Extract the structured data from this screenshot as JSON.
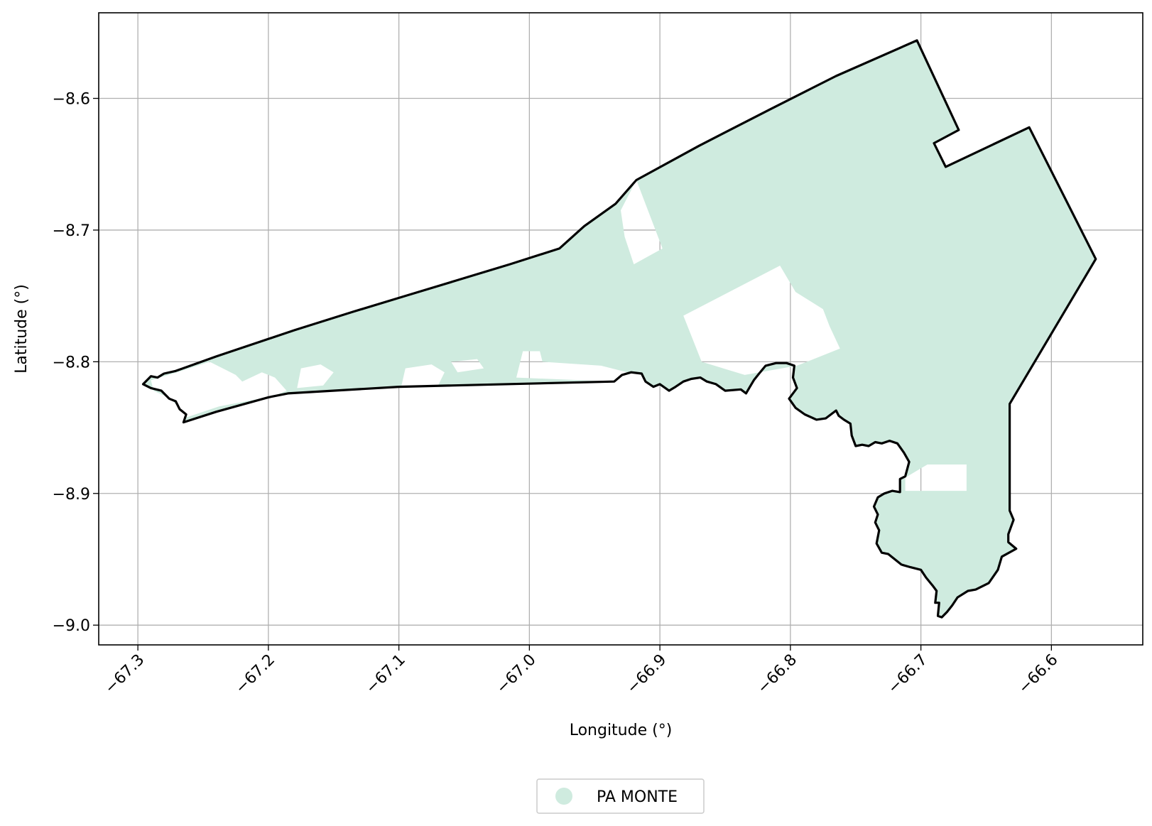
{
  "map": {
    "xlabel": "Longitude (°)",
    "ylabel": "Latitude (°)",
    "xlim": [
      -67.33,
      -66.53
    ],
    "ylim": [
      -9.015,
      -8.535
    ],
    "grid": true,
    "x_ticks": [
      {
        "value": -67.3,
        "label": "−67.3"
      },
      {
        "value": -67.2,
        "label": "−67.2"
      },
      {
        "value": -67.1,
        "label": "−67.1"
      },
      {
        "value": -67.0,
        "label": "−67.0"
      },
      {
        "value": -66.9,
        "label": "−66.9"
      },
      {
        "value": -66.8,
        "label": "−66.8"
      },
      {
        "value": -66.7,
        "label": "−66.7"
      },
      {
        "value": -66.6,
        "label": "−66.6"
      }
    ],
    "y_ticks": [
      {
        "value": -8.6,
        "label": "−8.6"
      },
      {
        "value": -8.7,
        "label": "−8.7"
      },
      {
        "value": -8.8,
        "label": "−8.8"
      },
      {
        "value": -8.9,
        "label": "−8.9"
      },
      {
        "value": -9.0,
        "label": "−9.0"
      }
    ],
    "fill_color": "#cfebdf",
    "boundary_color": "#000000",
    "legend": {
      "position": "bottom-center",
      "entries": [
        {
          "label": "PA MONTE",
          "color": "#cfebdf"
        }
      ]
    },
    "boundary": [
      [
        -67.296,
        -8.817
      ],
      [
        -67.29,
        -8.811
      ],
      [
        -67.285,
        -8.812
      ],
      [
        -67.28,
        -8.809
      ],
      [
        -67.271,
        -8.807
      ],
      [
        -67.24,
        -8.796
      ],
      [
        -67.18,
        -8.776
      ],
      [
        -67.135,
        -8.762
      ],
      [
        -67.095,
        -8.75
      ],
      [
        -67.055,
        -8.738
      ],
      [
        -67.015,
        -8.726
      ],
      [
        -66.977,
        -8.714
      ],
      [
        -66.958,
        -8.697
      ],
      [
        -66.934,
        -8.68
      ],
      [
        -66.918,
        -8.662
      ],
      [
        -66.87,
        -8.636
      ],
      [
        -66.815,
        -8.608
      ],
      [
        -66.765,
        -8.583
      ],
      [
        -66.703,
        -8.556
      ],
      [
        -66.671,
        -8.624
      ],
      [
        -66.69,
        -8.634
      ],
      [
        -66.681,
        -8.652
      ],
      [
        -66.617,
        -8.622
      ],
      [
        -66.566,
        -8.722
      ],
      [
        -66.632,
        -8.832
      ],
      [
        -66.632,
        -8.913
      ],
      [
        -66.629,
        -8.92
      ],
      [
        -66.633,
        -8.931
      ],
      [
        -66.633,
        -8.937
      ],
      [
        -66.627,
        -8.942
      ],
      [
        -66.638,
        -8.948
      ],
      [
        -66.641,
        -8.958
      ],
      [
        -66.648,
        -8.968
      ],
      [
        -66.658,
        -8.973
      ],
      [
        -66.664,
        -8.974
      ],
      [
        -66.672,
        -8.979
      ],
      [
        -66.676,
        -8.985
      ],
      [
        -66.68,
        -8.99
      ],
      [
        -66.684,
        -8.994
      ],
      [
        -66.687,
        -8.993
      ],
      [
        -66.686,
        -8.983
      ],
      [
        -66.689,
        -8.983
      ],
      [
        -66.688,
        -8.974
      ],
      [
        -66.691,
        -8.97
      ],
      [
        -66.696,
        -8.964
      ],
      [
        -66.7,
        -8.958
      ],
      [
        -66.708,
        -8.956
      ],
      [
        -66.715,
        -8.954
      ],
      [
        -66.72,
        -8.95
      ],
      [
        -66.725,
        -8.946
      ],
      [
        -66.73,
        -8.945
      ],
      [
        -66.734,
        -8.938
      ],
      [
        -66.732,
        -8.928
      ],
      [
        -66.735,
        -8.922
      ],
      [
        -66.733,
        -8.916
      ],
      [
        -66.736,
        -8.91
      ],
      [
        -66.733,
        -8.903
      ],
      [
        -66.728,
        -8.9
      ],
      [
        -66.722,
        -8.898
      ],
      [
        -66.716,
        -8.899
      ],
      [
        -66.716,
        -8.889
      ],
      [
        -66.712,
        -8.887
      ],
      [
        -66.709,
        -8.876
      ],
      [
        -66.713,
        -8.869
      ],
      [
        -66.718,
        -8.862
      ],
      [
        -66.724,
        -8.86
      ],
      [
        -66.73,
        -8.862
      ],
      [
        -66.735,
        -8.861
      ],
      [
        -66.74,
        -8.864
      ],
      [
        -66.745,
        -8.863
      ],
      [
        -66.75,
        -8.864
      ],
      [
        -66.753,
        -8.856
      ],
      [
        -66.754,
        -8.847
      ],
      [
        -66.759,
        -8.844
      ],
      [
        -66.763,
        -8.841
      ],
      [
        -66.765,
        -8.837
      ],
      [
        -66.773,
        -8.843
      ],
      [
        -66.78,
        -8.844
      ],
      [
        -66.789,
        -8.84
      ],
      [
        -66.796,
        -8.835
      ],
      [
        -66.801,
        -8.828
      ],
      [
        -66.795,
        -8.82
      ],
      [
        -66.798,
        -8.812
      ],
      [
        -66.797,
        -8.803
      ],
      [
        -66.803,
        -8.801
      ],
      [
        -66.811,
        -8.801
      ],
      [
        -66.819,
        -8.803
      ],
      [
        -66.824,
        -8.809
      ],
      [
        -66.828,
        -8.814
      ],
      [
        -66.831,
        -8.819
      ],
      [
        -66.834,
        -8.824
      ],
      [
        -66.838,
        -8.821
      ],
      [
        -66.85,
        -8.822
      ],
      [
        -66.857,
        -8.817
      ],
      [
        -66.864,
        -8.815
      ],
      [
        -66.869,
        -8.812
      ],
      [
        -66.876,
        -8.813
      ],
      [
        -66.882,
        -8.815
      ],
      [
        -66.888,
        -8.819
      ],
      [
        -66.893,
        -8.822
      ],
      [
        -66.9,
        -8.817
      ],
      [
        -66.905,
        -8.819
      ],
      [
        -66.911,
        -8.815
      ],
      [
        -66.914,
        -8.809
      ],
      [
        -66.922,
        -8.808
      ],
      [
        -66.929,
        -8.81
      ],
      [
        -66.935,
        -8.815
      ],
      [
        -67.1,
        -8.819
      ],
      [
        -67.185,
        -8.824
      ],
      [
        -67.2,
        -8.827
      ],
      [
        -67.24,
        -8.838
      ],
      [
        -67.265,
        -8.846
      ],
      [
        -67.263,
        -8.84
      ],
      [
        -67.268,
        -8.836
      ],
      [
        -67.271,
        -8.83
      ],
      [
        -67.276,
        -8.828
      ],
      [
        -67.282,
        -8.822
      ],
      [
        -67.29,
        -8.82
      ],
      [
        -67.296,
        -8.817
      ]
    ],
    "holes": [
      [
        [
          -66.93,
          -8.685
        ],
        [
          -66.918,
          -8.662
        ],
        [
          -66.898,
          -8.714
        ],
        [
          -66.92,
          -8.726
        ],
        [
          -66.927,
          -8.705
        ]
      ],
      [
        [
          -66.882,
          -8.765
        ],
        [
          -66.808,
          -8.727
        ],
        [
          -66.796,
          -8.747
        ],
        [
          -66.775,
          -8.76
        ],
        [
          -66.77,
          -8.773
        ],
        [
          -66.762,
          -8.79
        ],
        [
          -66.795,
          -8.803
        ],
        [
          -66.835,
          -8.81
        ],
        [
          -66.868,
          -8.8
        ]
      ],
      [
        [
          -66.695,
          -8.878
        ],
        [
          -66.665,
          -8.878
        ],
        [
          -66.665,
          -8.898
        ],
        [
          -66.712,
          -8.898
        ],
        [
          -66.712,
          -8.888
        ]
      ],
      [
        [
          -67.005,
          -8.792
        ],
        [
          -67.01,
          -8.812
        ],
        [
          -66.935,
          -8.815
        ],
        [
          -66.925,
          -8.808
        ],
        [
          -66.945,
          -8.803
        ],
        [
          -66.99,
          -8.8
        ],
        [
          -66.992,
          -8.792
        ]
      ],
      [
        [
          -67.29,
          -8.814
        ],
        [
          -67.27,
          -8.808
        ],
        [
          -67.245,
          -8.8
        ],
        [
          -67.235,
          -8.805
        ],
        [
          -67.225,
          -8.81
        ],
        [
          -67.22,
          -8.815
        ],
        [
          -67.205,
          -8.808
        ],
        [
          -67.195,
          -8.812
        ],
        [
          -67.186,
          -8.822
        ],
        [
          -67.196,
          -8.826
        ],
        [
          -67.238,
          -8.834
        ],
        [
          -67.262,
          -8.842
        ],
        [
          -67.275,
          -8.828
        ],
        [
          -67.288,
          -8.822
        ]
      ],
      [
        [
          -67.175,
          -8.805
        ],
        [
          -67.16,
          -8.802
        ],
        [
          -67.15,
          -8.808
        ],
        [
          -67.158,
          -8.818
        ],
        [
          -67.178,
          -8.82
        ]
      ],
      [
        [
          -67.095,
          -8.805
        ],
        [
          -67.075,
          -8.802
        ],
        [
          -67.065,
          -8.808
        ],
        [
          -67.07,
          -8.818
        ],
        [
          -67.098,
          -8.818
        ]
      ],
      [
        [
          -67.06,
          -8.8
        ],
        [
          -67.04,
          -8.798
        ],
        [
          -67.035,
          -8.805
        ],
        [
          -67.055,
          -8.808
        ]
      ]
    ]
  }
}
